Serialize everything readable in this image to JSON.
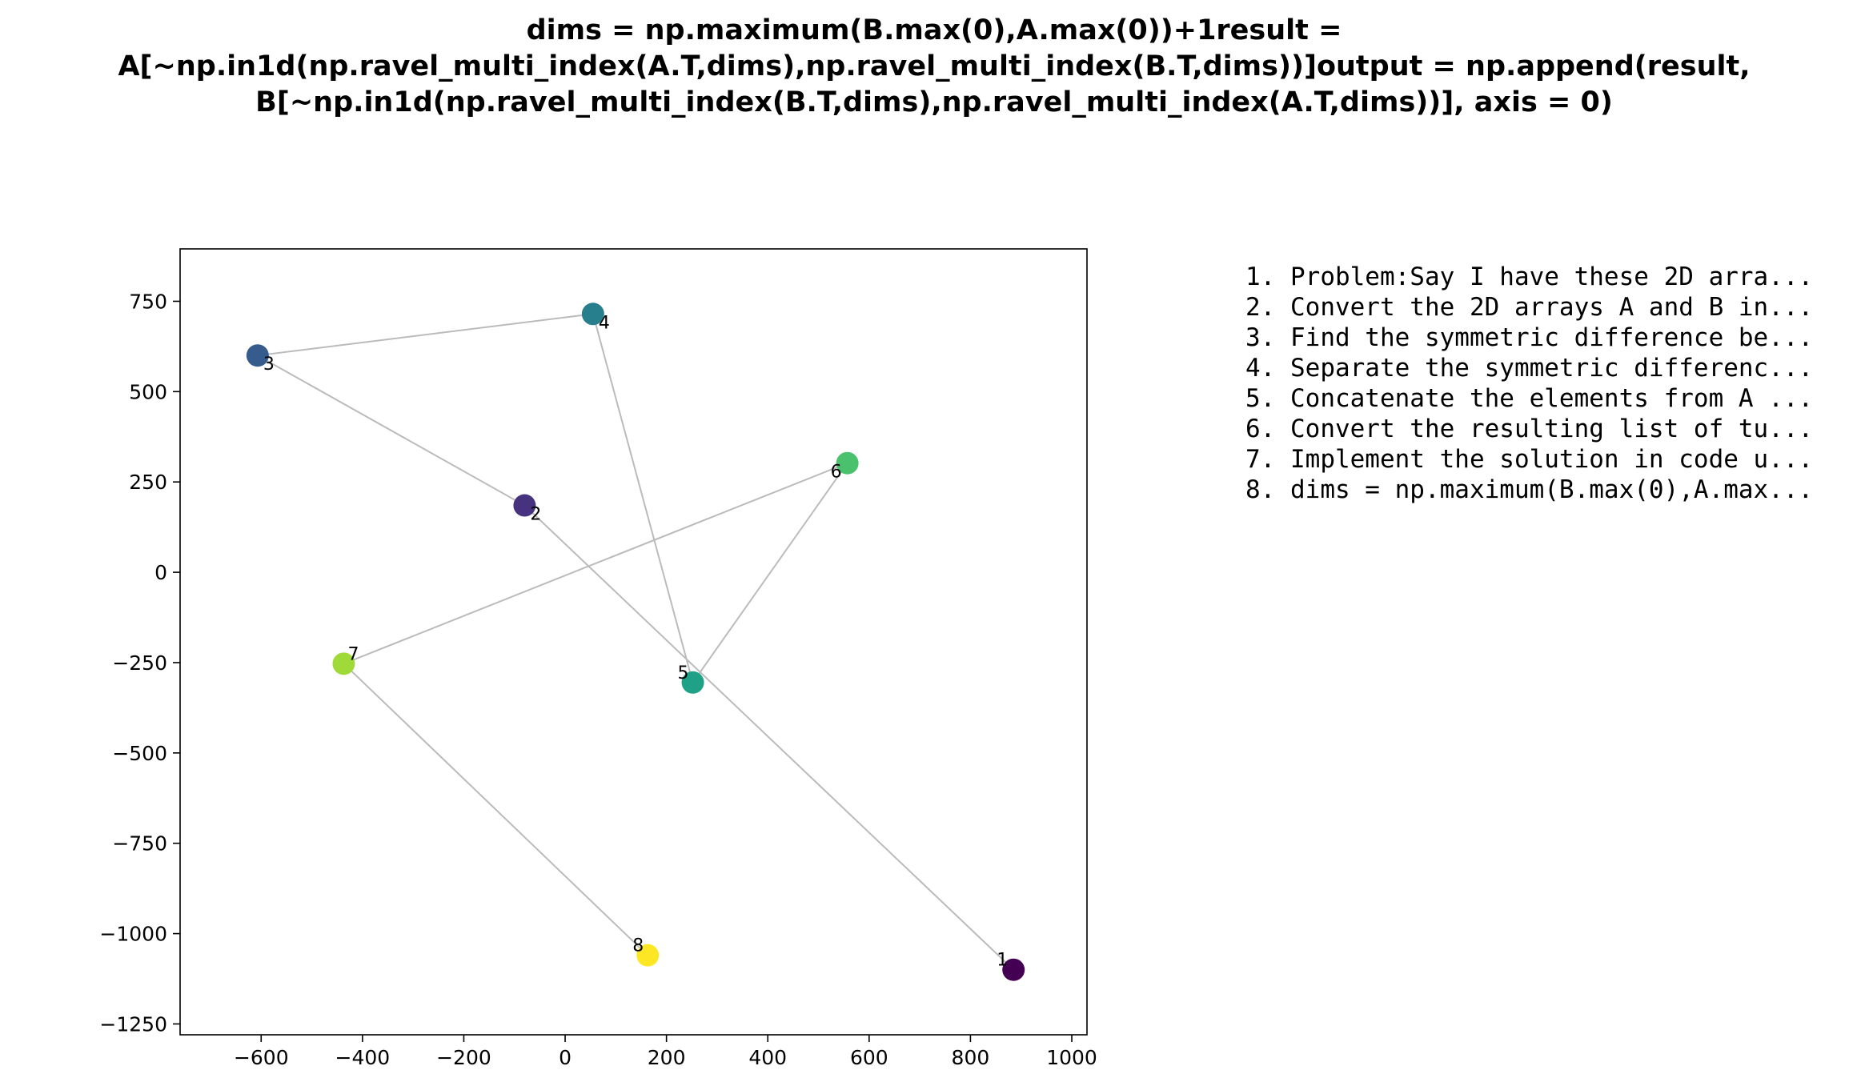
{
  "title_lines": [
    "dims = np.maximum(B.max(0),A.max(0))+1result =",
    "A[~np.in1d(np.ravel_multi_index(A.T,dims),np.ravel_multi_index(B.T,dims))]output = np.append(result,",
    "B[~np.in1d(np.ravel_multi_index(B.T,dims),np.ravel_multi_index(A.T,dims))], axis = 0)"
  ],
  "chart_data": {
    "type": "scatter",
    "title": "dims = np.maximum(B.max(0),A.max(0))+1result = A[~np.in1d(np.ravel_multi_index(A.T,dims),np.ravel_multi_index(B.T,dims))]output = np.append(result, B[~np.in1d(np.ravel_multi_index(B.T,dims),np.ravel_multi_index(A.T,dims))], axis = 0)",
    "xlabel": "",
    "ylabel": "",
    "xlim": [
      -760,
      1030
    ],
    "ylim": [
      -1280,
      895
    ],
    "x_ticks": [
      -600,
      -400,
      -200,
      0,
      200,
      400,
      600,
      800,
      1000
    ],
    "x_tick_labels": [
      "−600",
      "−400",
      "−200",
      "0",
      "200",
      "400",
      "600",
      "800",
      "1000"
    ],
    "y_ticks": [
      750,
      500,
      250,
      0,
      -250,
      -500,
      -750,
      -1000,
      -1250
    ],
    "y_tick_labels": [
      "750",
      "500",
      "250",
      "0",
      "−250",
      "−500",
      "−750",
      "−1000",
      "−1250"
    ],
    "grid": false,
    "connect_in_order": true,
    "line_color": "#bbbbbb",
    "colormap": "viridis",
    "points": [
      {
        "label": "1",
        "x": 885,
        "y": -1100,
        "color": "#440154"
      },
      {
        "label": "2",
        "x": -80,
        "y": 185,
        "color": "#46327e"
      },
      {
        "label": "3",
        "x": -607,
        "y": 600,
        "color": "#365c8d"
      },
      {
        "label": "4",
        "x": 55,
        "y": 715,
        "color": "#277f8e"
      },
      {
        "label": "5",
        "x": 252,
        "y": -305,
        "color": "#1fa187"
      },
      {
        "label": "6",
        "x": 557,
        "y": 302,
        "color": "#4ac16d"
      },
      {
        "label": "7",
        "x": -437,
        "y": -253,
        "color": "#a0da39"
      },
      {
        "label": "8",
        "x": 163,
        "y": -1060,
        "color": "#fde725"
      }
    ],
    "legend_items": [
      "1. Problem:Say I have these 2D arra...",
      "2. Convert the 2D arrays A and B in...",
      "3. Find the symmetric difference be...",
      "4. Separate the symmetric differenc...",
      "5. Concatenate the elements from A ...",
      "6. Convert the resulting list of tu...",
      "7. Implement the solution in code u...",
      "8. dims = np.maximum(B.max(0),A.max..."
    ]
  }
}
